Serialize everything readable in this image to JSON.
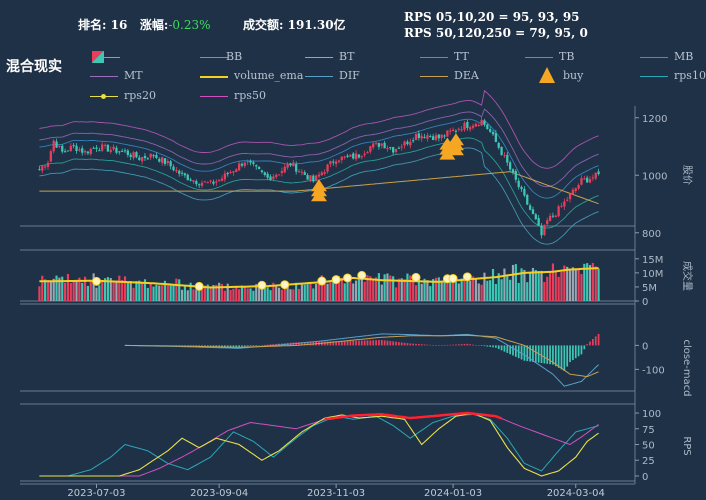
{
  "header": {
    "rank_label": "排名:",
    "rank_value": "16",
    "change_label": "涨幅:",
    "change_value": "-0.23%",
    "turnover_label": "成交额:",
    "turnover_value": "191.30亿",
    "rps_line1": "RPS 05,10,20 = 95, 93, 95",
    "rps_line2": "RPS 50,120,250 = 79, 95, 0"
  },
  "title": "混合现实",
  "legend": [
    {
      "name": "BB",
      "color": "#4aa7c0"
    },
    {
      "name": "BT",
      "color": "#c8a24a"
    },
    {
      "name": "TT",
      "color": "#c05abf"
    },
    {
      "name": "TB",
      "color": "#2bb0a0"
    },
    {
      "name": "MB",
      "color": "#3b8fd0"
    },
    {
      "name": "MT",
      "color": "#9a6cc0"
    },
    {
      "name": "volume_ema",
      "color": "#f5d020"
    },
    {
      "name": "DIF",
      "color": "#5aa0c8"
    },
    {
      "name": "DEA",
      "color": "#c8a050"
    },
    {
      "name": "buy",
      "color": "#f5a623"
    },
    {
      "name": "rps10",
      "color": "#2aa8b8"
    },
    {
      "name": "rps20",
      "color": "#e8e048"
    },
    {
      "name": "rps50",
      "color": "#d050c0"
    }
  ],
  "colors": {
    "up": "#e83e5c",
    "down": "#3cc8b4",
    "ema": "#f5d020",
    "panel_bg": "#1f3147",
    "grid": "#3a4c63"
  },
  "chart_data": [
    {
      "type": "candlestick",
      "name": "price",
      "ylabel": "股价",
      "yticks": [
        800,
        1000,
        1200
      ],
      "ylim": [
        740,
        1220
      ],
      "trend_points": [
        [
          0,
          1020
        ],
        [
          3,
          1050
        ],
        [
          5,
          1120
        ],
        [
          8,
          1080
        ],
        [
          12,
          1100
        ],
        [
          16,
          1080
        ],
        [
          20,
          1100
        ],
        [
          25,
          1090
        ],
        [
          30,
          1080
        ],
        [
          35,
          1060
        ],
        [
          40,
          1070
        ],
        [
          45,
          1040
        ],
        [
          50,
          1000
        ],
        [
          55,
          980
        ],
        [
          60,
          970
        ],
        [
          64,
          990
        ],
        [
          68,
          1020
        ],
        [
          72,
          1050
        ],
        [
          76,
          1020
        ],
        [
          80,
          990
        ],
        [
          84,
          1010
        ],
        [
          88,
          1040
        ],
        [
          92,
          1010
        ],
        [
          96,
          980
        ],
        [
          100,
          1020
        ],
        [
          104,
          1060
        ],
        [
          108,
          1060
        ],
        [
          112,
          1070
        ],
        [
          116,
          1100
        ],
        [
          120,
          1110
        ],
        [
          124,
          1090
        ],
        [
          128,
          1110
        ],
        [
          132,
          1140
        ],
        [
          136,
          1140
        ],
        [
          140,
          1130
        ],
        [
          144,
          1150
        ],
        [
          148,
          1170
        ],
        [
          152,
          1180
        ],
        [
          155,
          1190
        ],
        [
          158,
          1150
        ],
        [
          162,
          1080
        ],
        [
          166,
          1000
        ],
        [
          170,
          920
        ],
        [
          174,
          840
        ],
        [
          176,
          790
        ],
        [
          178,
          840
        ],
        [
          182,
          880
        ],
        [
          186,
          930
        ],
        [
          190,
          980
        ],
        [
          193,
          990
        ],
        [
          196,
          1000
        ]
      ],
      "buy_signals": [
        98,
        143,
        146
      ]
    },
    {
      "type": "bar",
      "name": "volume",
      "ylabel": "成交量",
      "yticks": [
        "0",
        "5M",
        "10M",
        "15M"
      ],
      "ylim": [
        0,
        16
      ],
      "ema_points": [
        [
          0,
          7
        ],
        [
          20,
          7.2
        ],
        [
          40,
          6.3
        ],
        [
          60,
          4.8
        ],
        [
          80,
          5.3
        ],
        [
          100,
          6.8
        ],
        [
          110,
          8.2
        ],
        [
          120,
          7.4
        ],
        [
          140,
          6.8
        ],
        [
          160,
          8.5
        ],
        [
          170,
          10
        ],
        [
          180,
          10.4
        ],
        [
          186,
          11.2
        ],
        [
          196,
          11.7
        ]
      ],
      "highlights": [
        {
          "i": 20,
          "v": 7
        },
        {
          "i": 56,
          "v": 5.2
        },
        {
          "i": 78,
          "v": 5.6
        },
        {
          "i": 86,
          "v": 5.8
        },
        {
          "i": 99,
          "v": 7.1
        },
        {
          "i": 104,
          "v": 7.6
        },
        {
          "i": 108,
          "v": 8.2
        },
        {
          "i": 113,
          "v": 9.1
        },
        {
          "i": 132,
          "v": 8.4
        },
        {
          "i": 143,
          "v": 7.9
        },
        {
          "i": 145,
          "v": 8.0
        },
        {
          "i": 150,
          "v": 8.6
        }
      ]
    },
    {
      "type": "line",
      "name": "macd",
      "ylabel": "close-macd",
      "yticks": [
        -100,
        0
      ],
      "ylim": [
        -190,
        60
      ],
      "dif_points": [
        [
          30,
          0
        ],
        [
          50,
          -5
        ],
        [
          70,
          -12
        ],
        [
          90,
          8
        ],
        [
          100,
          20
        ],
        [
          110,
          34
        ],
        [
          120,
          48
        ],
        [
          130,
          45
        ],
        [
          140,
          40
        ],
        [
          150,
          46
        ],
        [
          160,
          30
        ],
        [
          170,
          -40
        ],
        [
          180,
          -120
        ],
        [
          184,
          -170
        ],
        [
          190,
          -150
        ],
        [
          196,
          -80
        ]
      ],
      "dea_points": [
        [
          30,
          0
        ],
        [
          50,
          -3
        ],
        [
          70,
          -8
        ],
        [
          90,
          0
        ],
        [
          100,
          10
        ],
        [
          110,
          22
        ],
        [
          120,
          34
        ],
        [
          130,
          40
        ],
        [
          140,
          40
        ],
        [
          150,
          42
        ],
        [
          160,
          36
        ],
        [
          170,
          0
        ],
        [
          180,
          -70
        ],
        [
          186,
          -120
        ],
        [
          192,
          -130
        ],
        [
          196,
          -110
        ]
      ]
    },
    {
      "type": "line",
      "name": "rps",
      "ylabel": "RPS",
      "yticks": [
        0,
        25,
        50,
        75,
        100
      ],
      "ylim": [
        -8,
        108
      ],
      "rps10_points": [
        [
          10,
          0
        ],
        [
          18,
          10
        ],
        [
          25,
          30
        ],
        [
          30,
          50
        ],
        [
          38,
          40
        ],
        [
          45,
          20
        ],
        [
          52,
          10
        ],
        [
          60,
          30
        ],
        [
          68,
          70
        ],
        [
          75,
          55
        ],
        [
          82,
          30
        ],
        [
          90,
          60
        ],
        [
          96,
          80
        ],
        [
          104,
          95
        ],
        [
          110,
          90
        ],
        [
          118,
          95
        ],
        [
          124,
          80
        ],
        [
          130,
          60
        ],
        [
          138,
          85
        ],
        [
          145,
          95
        ],
        [
          152,
          98
        ],
        [
          158,
          90
        ],
        [
          164,
          60
        ],
        [
          170,
          20
        ],
        [
          176,
          8
        ],
        [
          182,
          40
        ],
        [
          188,
          70
        ],
        [
          196,
          80
        ]
      ],
      "rps20_points": [
        [
          0,
          0
        ],
        [
          28,
          0
        ],
        [
          35,
          10
        ],
        [
          40,
          25
        ],
        [
          45,
          40
        ],
        [
          50,
          60
        ],
        [
          56,
          45
        ],
        [
          62,
          60
        ],
        [
          70,
          50
        ],
        [
          78,
          25
        ],
        [
          84,
          40
        ],
        [
          92,
          70
        ],
        [
          100,
          92
        ],
        [
          106,
          97
        ],
        [
          112,
          92
        ],
        [
          120,
          95
        ],
        [
          128,
          90
        ],
        [
          134,
          50
        ],
        [
          140,
          75
        ],
        [
          146,
          95
        ],
        [
          152,
          100
        ],
        [
          158,
          88
        ],
        [
          164,
          45
        ],
        [
          170,
          12
        ],
        [
          176,
          0
        ],
        [
          182,
          8
        ],
        [
          188,
          30
        ],
        [
          192,
          55
        ],
        [
          196,
          68
        ]
      ],
      "rps50_points": [
        [
          0,
          0
        ],
        [
          35,
          0
        ],
        [
          42,
          12
        ],
        [
          50,
          30
        ],
        [
          58,
          50
        ],
        [
          66,
          72
        ],
        [
          74,
          85
        ],
        [
          82,
          80
        ],
        [
          90,
          75
        ],
        [
          100,
          90
        ],
        [
          110,
          96
        ],
        [
          120,
          98
        ],
        [
          130,
          92
        ],
        [
          140,
          96
        ],
        [
          150,
          100
        ],
        [
          160,
          95
        ],
        [
          168,
          80
        ],
        [
          174,
          70
        ],
        [
          180,
          60
        ],
        [
          186,
          50
        ],
        [
          190,
          62
        ],
        [
          196,
          82
        ]
      ]
    }
  ],
  "xaxis": {
    "tick_labels": [
      "2023-07-03",
      "2023-09-04",
      "2023-11-03",
      "2024-01-03",
      "2024-03-04"
    ],
    "tick_index": [
      20,
      63,
      104,
      145,
      188
    ],
    "count": 197
  }
}
